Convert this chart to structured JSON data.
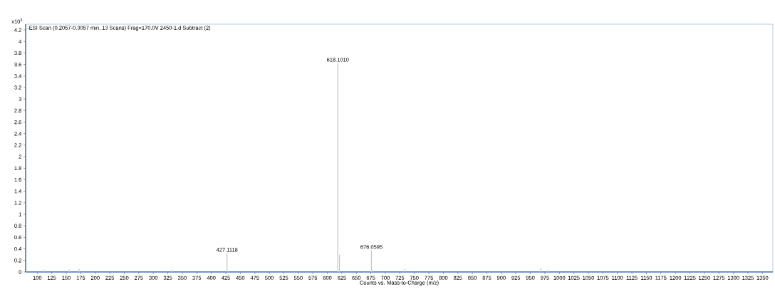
{
  "chart_data": {
    "type": "bar",
    "title": "-ESI Scan (0.2057-0.3057 min, 13 Scans) Frag=170.0V 2450-1.d  Subtract (2)",
    "xlabel": "Counts vs. Mass-to-Charge (m/z)",
    "ylabel": "x10$^{3}$",
    "x": [
      111,
      155,
      172,
      333,
      427.1118,
      618.101,
      621,
      676.0595,
      733,
      968,
      980
    ],
    "values": [
      0.04,
      0.04,
      0.06,
      0.04,
      0.33,
      3.63,
      0.3,
      0.38,
      0.05,
      0.07,
      0.03
    ],
    "color": "#c8c8c8",
    "xlim": [
      80,
      1368
    ],
    "ylim": [
      0,
      4.3
    ],
    "xticks": [
      100,
      125,
      150,
      175,
      200,
      225,
      250,
      275,
      300,
      325,
      350,
      375,
      400,
      425,
      450,
      475,
      500,
      525,
      550,
      575,
      600,
      625,
      650,
      675,
      700,
      725,
      750,
      775,
      800,
      825,
      850,
      875,
      900,
      925,
      950,
      975,
      1000,
      1025,
      1050,
      1075,
      1100,
      1125,
      1150,
      1175,
      1200,
      1225,
      1250,
      1275,
      1300,
      1325,
      1350
    ],
    "yticks": [
      0,
      0.2,
      0.4,
      0.6,
      0.8,
      1,
      1.2,
      1.4,
      1.6,
      1.8,
      2,
      2.2,
      2.4,
      2.6,
      2.8,
      3,
      3.2,
      3.4,
      3.6,
      3.8,
      4,
      4.2
    ],
    "annotations": [
      {
        "text": "427.1118",
        "x": 427.1118,
        "y": 0.33
      },
      {
        "text": "618.1010",
        "x": 618.101,
        "y": 3.63
      },
      {
        "text": "676.0595",
        "x": 676.0595,
        "y": 0.38
      }
    ],
    "grid": false
  }
}
